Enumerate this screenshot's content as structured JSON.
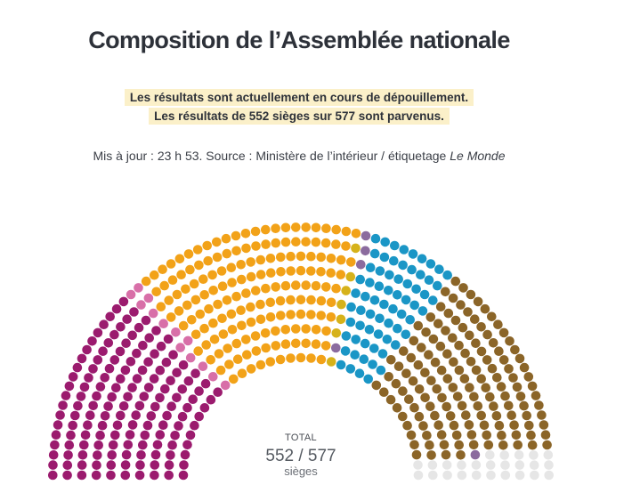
{
  "title": "Composition de l’Assemblée nationale",
  "notice": {
    "line1": "Les résultats sont actuellement en cours de dépouillement.",
    "line2": "Les résultats de 552 sièges sur 577 sont parvenus."
  },
  "meta": {
    "prefix": "Mis à jour : 23 h 53. Source : Ministère de l’intérieur / étiquetage ",
    "source_em": "Le Monde"
  },
  "total": {
    "label": "TOTAL",
    "value": "552 / 577",
    "unit": "sièges"
  },
  "chart_data": {
    "type": "hemicycle",
    "total_seats": 577,
    "declared_seats": 552,
    "groups": [
      {
        "seats": 150,
        "color": "#9b1b6e"
      },
      {
        "seats": 13,
        "color": "#d86fa8"
      },
      {
        "seats": 166,
        "color": "#f2a218"
      },
      {
        "seats": 7,
        "color": "#d6b21a"
      },
      {
        "seats": 4,
        "color": "#8b6b9e"
      },
      {
        "seats": 67,
        "color": "#1a96c6"
      },
      {
        "seats": 144,
        "color": "#8b6528"
      },
      {
        "seats": 1,
        "color": "#8b6b9e"
      },
      {
        "seats": 25,
        "color": "#e6e6e6"
      }
    ]
  }
}
